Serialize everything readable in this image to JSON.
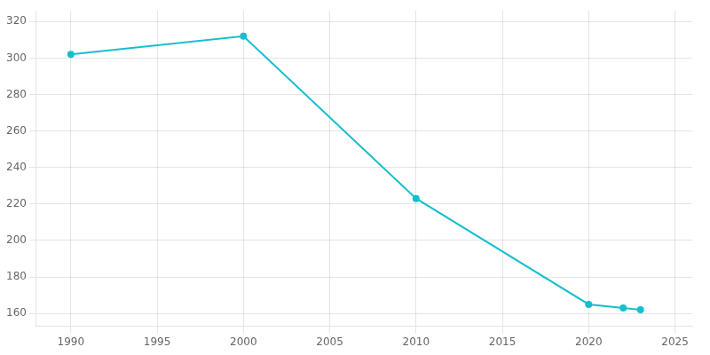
{
  "chart_data": {
    "type": "line",
    "x": [
      1990,
      2000,
      2010,
      2020,
      2022,
      2023
    ],
    "values": [
      302,
      312,
      223,
      165,
      163,
      162
    ],
    "color": "#17BECF",
    "marker": "circle",
    "xlim": [
      1988,
      2026
    ],
    "xticks": [
      1990,
      1995,
      2000,
      2005,
      2010,
      2015,
      2020,
      2025
    ],
    "ylim": [
      153,
      326
    ],
    "yticks": [
      160,
      180,
      200,
      220,
      240,
      260,
      280,
      300,
      320
    ],
    "grid": true
  }
}
